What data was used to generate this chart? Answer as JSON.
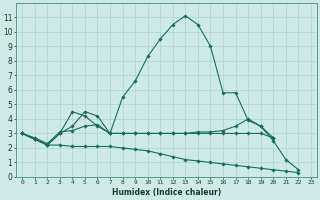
{
  "xlabel": "Humidex (Indice chaleur)",
  "bg_color": "#ceeae7",
  "grid_color": "#aed4cf",
  "line_color": "#1a6b5e",
  "xlim": [
    -0.5,
    23.5
  ],
  "ylim": [
    0,
    12
  ],
  "xticks": [
    0,
    1,
    2,
    3,
    4,
    5,
    6,
    7,
    8,
    9,
    10,
    11,
    12,
    13,
    14,
    15,
    16,
    17,
    18,
    19,
    20,
    21,
    22,
    23
  ],
  "yticks": [
    0,
    1,
    2,
    3,
    4,
    5,
    6,
    7,
    8,
    9,
    10,
    11
  ],
  "series": [
    {
      "x": [
        0,
        1,
        2,
        3,
        4,
        5,
        6,
        7,
        8,
        9,
        10,
        11,
        12,
        13,
        14,
        15,
        16,
        17,
        18,
        19,
        20,
        21,
        22
      ],
      "y": [
        3.0,
        2.6,
        2.2,
        3.0,
        4.5,
        4.2,
        3.5,
        3.0,
        5.5,
        6.6,
        8.3,
        9.5,
        10.5,
        11.1,
        10.5,
        9.0,
        5.8,
        5.8,
        3.9,
        3.5,
        2.5,
        1.2,
        0.5
      ]
    },
    {
      "x": [
        0,
        1,
        2,
        3,
        4,
        5,
        6,
        7,
        8,
        9,
        10,
        11,
        12,
        13,
        14,
        15,
        16,
        17,
        18,
        19,
        20
      ],
      "y": [
        3.0,
        2.7,
        2.3,
        3.1,
        3.2,
        3.5,
        3.6,
        3.0,
        3.0,
        3.0,
        3.0,
        3.0,
        3.0,
        3.0,
        3.1,
        3.1,
        3.2,
        3.5,
        4.0,
        3.5,
        2.7
      ]
    },
    {
      "x": [
        0,
        1,
        2,
        3,
        4,
        5,
        6,
        7,
        8,
        9,
        10,
        11,
        12,
        13,
        14,
        15,
        16,
        17,
        18,
        19,
        20
      ],
      "y": [
        3.0,
        2.6,
        2.2,
        3.0,
        3.5,
        4.5,
        4.2,
        3.0,
        3.0,
        3.0,
        3.0,
        3.0,
        3.0,
        3.0,
        3.0,
        3.0,
        3.0,
        3.0,
        3.0,
        3.0,
        2.7
      ]
    },
    {
      "x": [
        0,
        1,
        2,
        3,
        4,
        5,
        6,
        7,
        8,
        9,
        10,
        11,
        12,
        13,
        14,
        15,
        16,
        17,
        18,
        19,
        20,
        21,
        22
      ],
      "y": [
        3.0,
        2.6,
        2.2,
        2.2,
        2.1,
        2.1,
        2.1,
        2.1,
        2.0,
        1.9,
        1.8,
        1.6,
        1.4,
        1.2,
        1.1,
        1.0,
        0.9,
        0.8,
        0.7,
        0.6,
        0.5,
        0.4,
        0.3
      ]
    }
  ]
}
